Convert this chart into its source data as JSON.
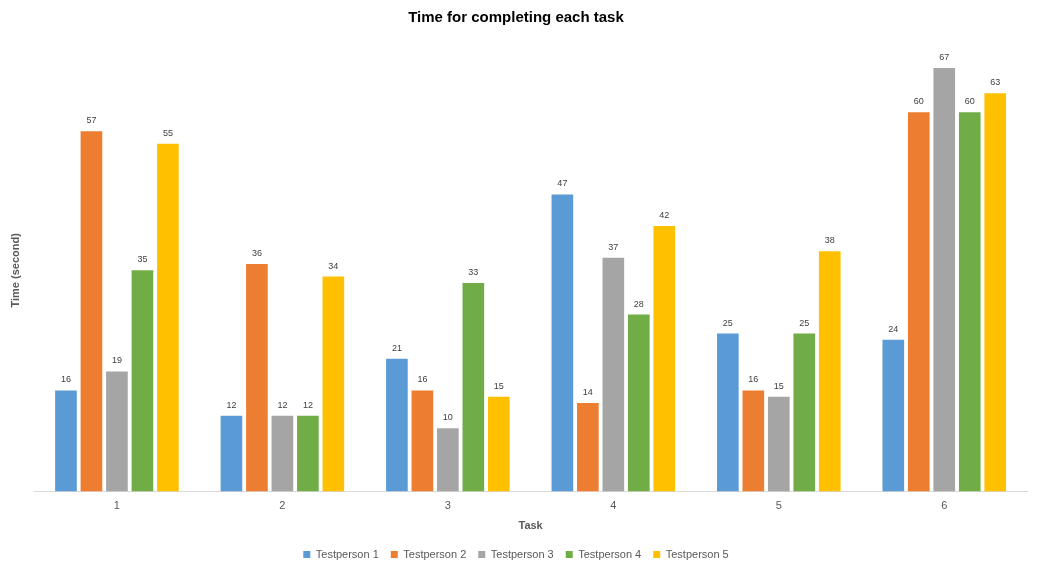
{
  "chart_data": {
    "type": "bar",
    "title": "Time for completing each task",
    "xlabel": "Task",
    "ylabel": "Time (second)",
    "categories": [
      "1",
      "2",
      "3",
      "4",
      "5",
      "6"
    ],
    "series": [
      {
        "name": "Testperson 1",
        "color": "#5b9bd5",
        "values": [
          16,
          12,
          21,
          47,
          25,
          24
        ]
      },
      {
        "name": "Testperson 2",
        "color": "#ed7d31",
        "values": [
          57,
          36,
          16,
          14,
          16,
          60
        ]
      },
      {
        "name": "Testperson 3",
        "color": "#a5a5a5",
        "values": [
          19,
          12,
          10,
          37,
          15,
          67
        ]
      },
      {
        "name": "Testperson 4",
        "color": "#70ad47",
        "values": [
          35,
          12,
          33,
          28,
          25,
          60
        ]
      },
      {
        "name": "Testperson 5",
        "color": "#ffc000",
        "values": [
          55,
          34,
          15,
          42,
          38,
          63
        ]
      }
    ],
    "data_labels": true,
    "legend": "bottom",
    "grid": false
  }
}
